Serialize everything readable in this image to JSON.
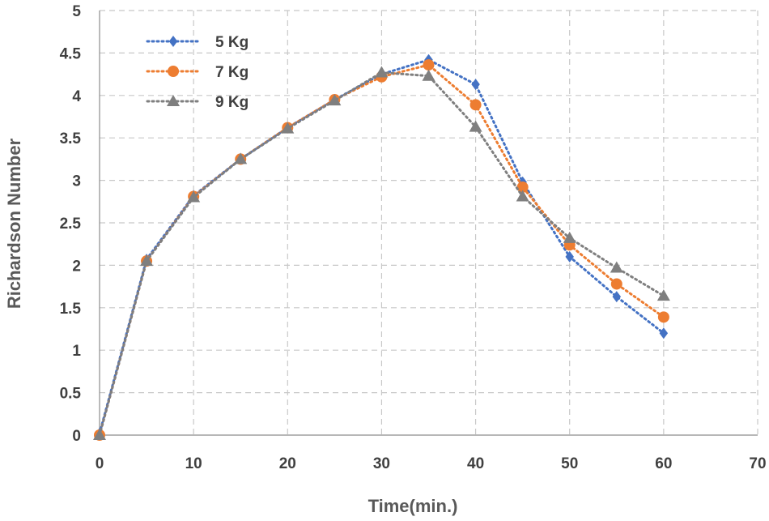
{
  "chart_data": {
    "type": "line",
    "title": "",
    "xlabel": "Time(min.)",
    "ylabel": "Richardson Number",
    "xlim": [
      0,
      70
    ],
    "ylim": [
      0,
      5
    ],
    "xticks": [
      0,
      10,
      20,
      30,
      40,
      50,
      60,
      70
    ],
    "yticks": [
      0,
      0.5,
      1,
      1.5,
      2,
      2.5,
      3,
      3.5,
      4,
      4.5,
      5
    ],
    "ytick_labels": [
      "0",
      "0.5",
      "1",
      "1.5",
      "2",
      "2.5",
      "3",
      "3.5",
      "4",
      "4.5",
      "5"
    ],
    "grid": true,
    "legend_position": "top-left",
    "x": [
      0,
      5,
      10,
      15,
      20,
      25,
      30,
      35,
      40,
      45,
      50,
      55,
      60
    ],
    "series": [
      {
        "name": "5 Kg",
        "color": "#4472C4",
        "marker": "diamond",
        "values": [
          0.02,
          2.07,
          2.82,
          3.25,
          3.62,
          3.95,
          4.25,
          4.42,
          4.13,
          2.98,
          2.1,
          1.63,
          1.2
        ]
      },
      {
        "name": "7 Kg",
        "color": "#ED7D31",
        "marker": "circle",
        "values": [
          0.0,
          2.05,
          2.81,
          3.25,
          3.62,
          3.95,
          4.22,
          4.36,
          3.89,
          2.92,
          2.24,
          1.78,
          1.39
        ]
      },
      {
        "name": "9 Kg",
        "color": "#7F7F7F",
        "marker": "triangle",
        "values": [
          0.0,
          2.05,
          2.8,
          3.25,
          3.61,
          3.94,
          4.27,
          4.23,
          3.63,
          2.81,
          2.32,
          1.97,
          1.64
        ]
      }
    ]
  }
}
